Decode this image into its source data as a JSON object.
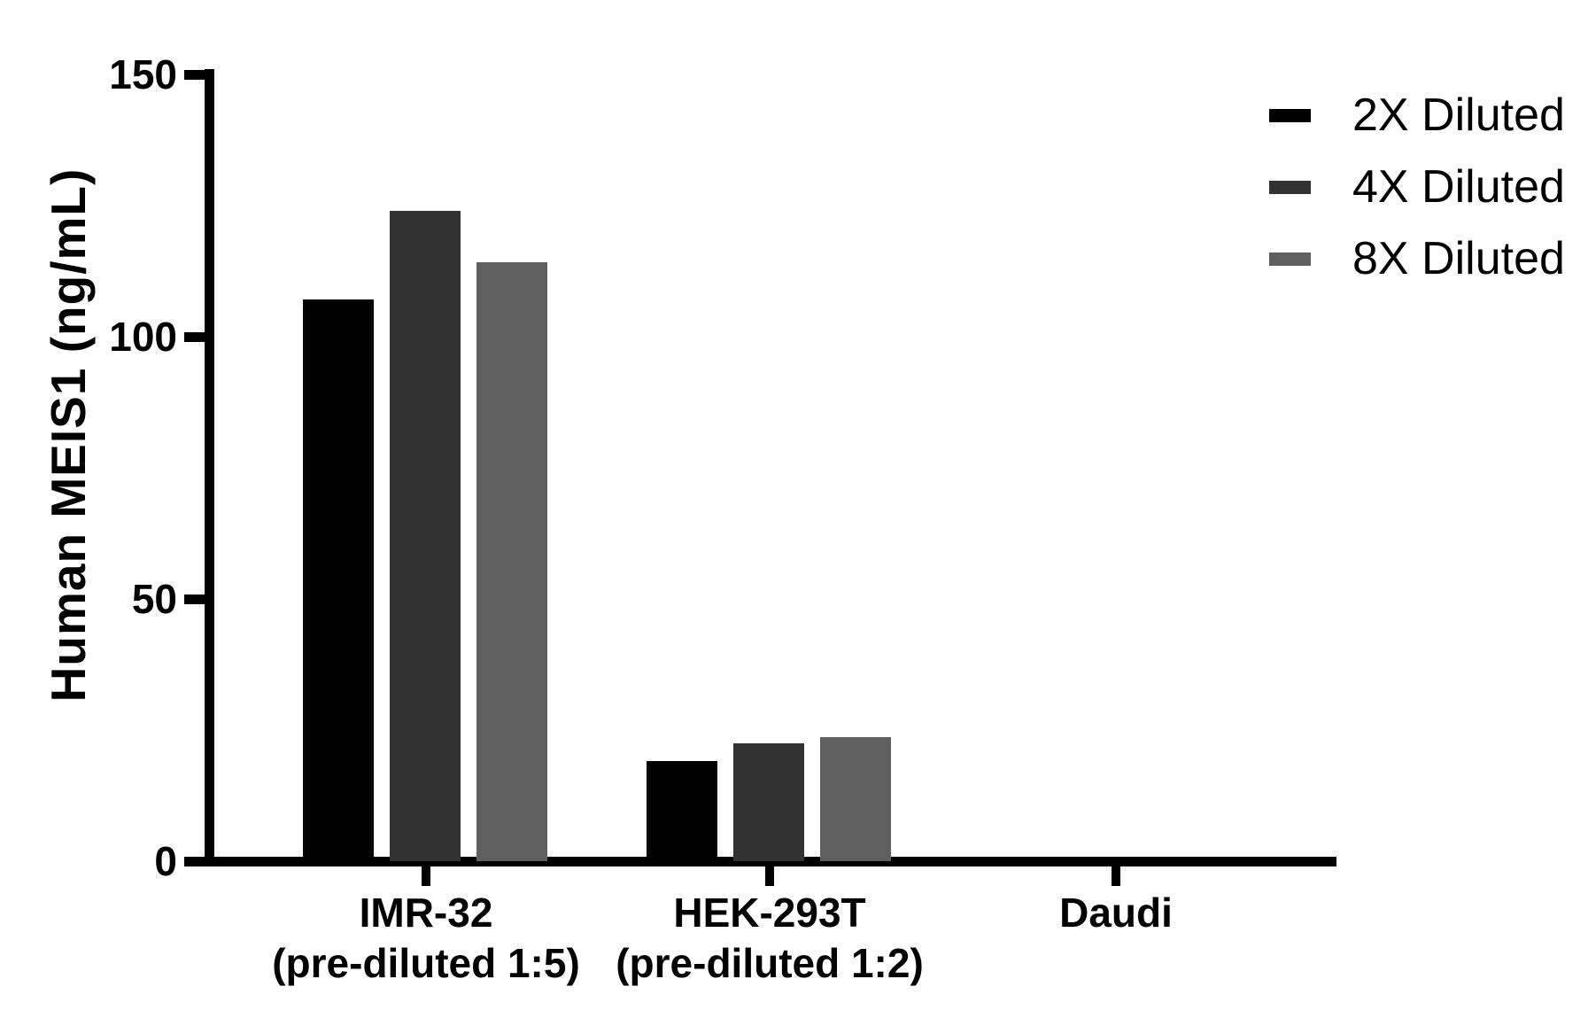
{
  "chart_data": {
    "type": "bar",
    "title": "",
    "xlabel": "",
    "ylabel": "Human MEIS1 (ng/mL)",
    "ylim": [
      0,
      150
    ],
    "yticks": [
      0,
      50,
      100,
      150
    ],
    "grid": false,
    "background_color": "#ffffff",
    "axis_color": "#000000",
    "legend_position": "top-right",
    "categories": [
      {
        "label": "IMR-32",
        "note": "(pre-diluted 1:5)"
      },
      {
        "label": "HEK-293T",
        "note": "(pre-diluted 1:2)"
      },
      {
        "label": "Daudi",
        "note": ""
      }
    ],
    "series": [
      {
        "name": "2X Diluted",
        "color": "#000000",
        "values": [
          107.1,
          19.1,
          0
        ]
      },
      {
        "name": "4X Diluted",
        "color": "#323232",
        "values": [
          124.0,
          22.5,
          0
        ]
      },
      {
        "name": "8X Diluted",
        "color": "#5f5f5f",
        "values": [
          114.2,
          23.6,
          0
        ]
      }
    ]
  }
}
